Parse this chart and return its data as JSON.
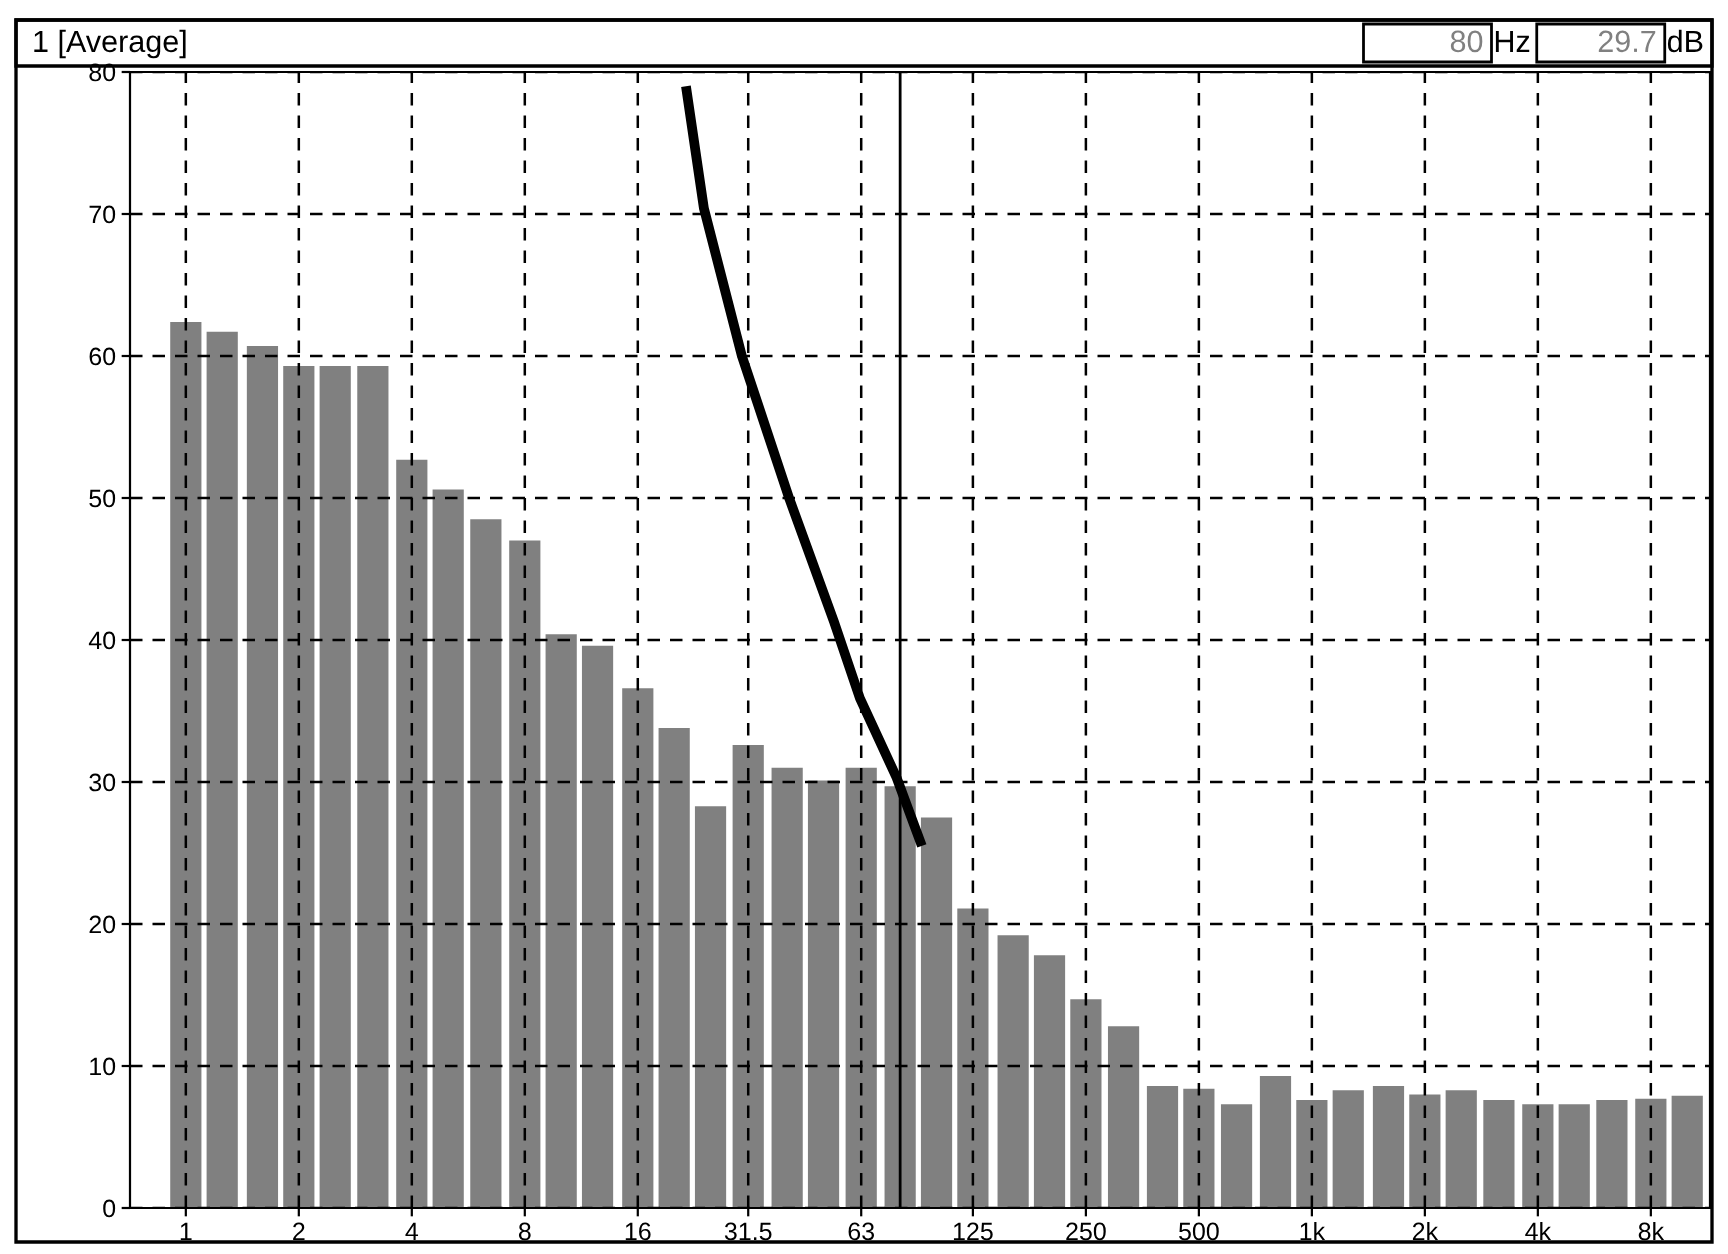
{
  "chart_data": {
    "type": "bar",
    "title": "1 [Average]",
    "annotations": [
      "80",
      "Hz",
      "29.7",
      "dB"
    ],
    "x": [
      1,
      1.25,
      1.6,
      2,
      2.5,
      3.15,
      4,
      5,
      6.3,
      8,
      10,
      12.5,
      16,
      20,
      25,
      31.5,
      40,
      50,
      63,
      80,
      100,
      125,
      160,
      200,
      250,
      315,
      400,
      500,
      630,
      800,
      1000,
      1250,
      1600,
      2000,
      2500,
      3150,
      4000,
      5000,
      6300,
      8000,
      10000
    ],
    "log": "x",
    "series": [
      {
        "color": "#808080",
        "values": [
          62.4,
          61.7,
          60.7,
          59.3,
          59.3,
          59.3,
          52.7,
          50.6,
          48.5,
          47.0,
          40.4,
          39.6,
          36.6,
          33.8,
          28.3,
          32.6,
          31.0,
          30.1,
          31.0,
          29.7,
          27.5,
          21.1,
          19.2,
          17.8,
          14.7,
          12.8,
          8.6,
          8.4,
          7.3,
          9.3,
          7.6,
          8.3,
          8.6,
          8.0,
          8.3,
          7.6,
          7.3,
          7.3,
          7.6,
          7.7,
          7.9
        ]
      },
      {
        "type": "line",
        "color": "#000000",
        "x": [
          21.5,
          24.0,
          30.3,
          40.6,
          53.3,
          62.5,
          78.3,
          91.4
        ],
        "values": [
          79.0,
          70.4,
          60.0,
          49.9,
          41.3,
          35.9,
          30.3,
          25.5
        ]
      }
    ],
    "ref_lines": [
      {
        "axis": "x",
        "value": 80,
        "label": null,
        "color": "#000000"
      }
    ],
    "xlim": [
      0.71,
      11500
    ],
    "xticks": [
      1,
      2,
      4,
      8,
      16,
      31.5,
      63,
      125,
      250,
      500,
      {
        "value": 1000,
        "label": "1k"
      },
      {
        "value": 2000,
        "label": "2k"
      },
      {
        "value": 4000,
        "label": "4k"
      },
      {
        "value": 8000,
        "label": "8k"
      }
    ],
    "ylim": [
      0,
      80
    ],
    "yticks": [
      0,
      10,
      20,
      30,
      40,
      50,
      60,
      70,
      80
    ],
    "grid": true,
    "legend": false,
    "marker": "none",
    "line_style": "solid"
  }
}
